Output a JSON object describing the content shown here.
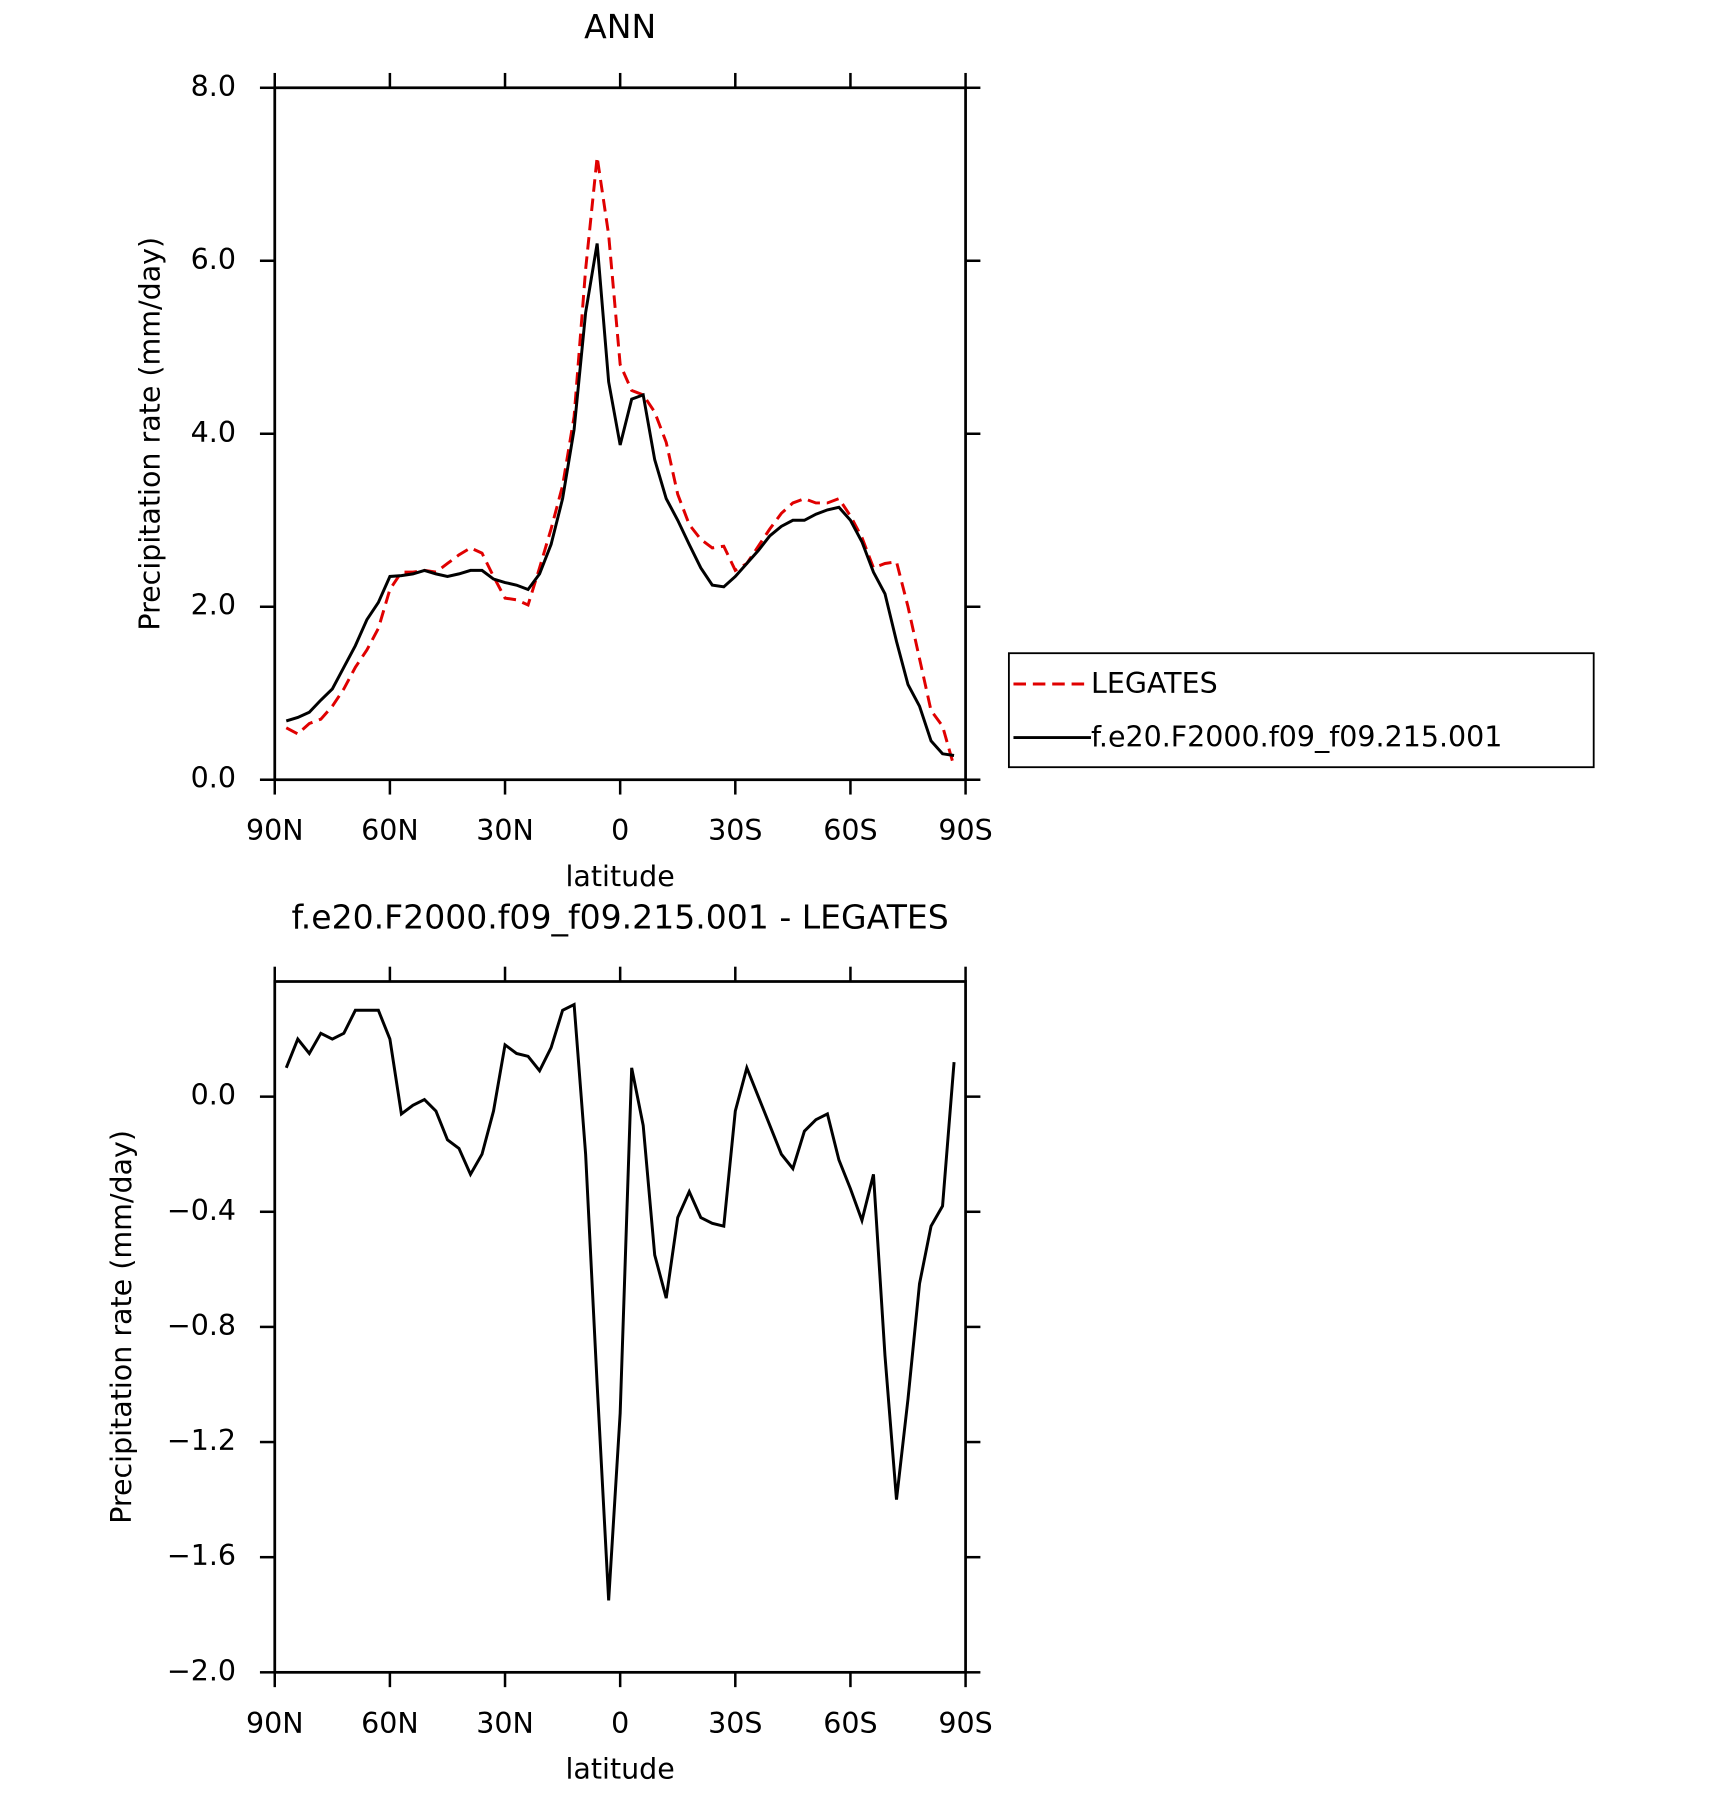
{
  "chart_data": [
    {
      "type": "line",
      "title": "ANN",
      "x_label": "latitude",
      "y_label": "Precipitation rate (mm/day)",
      "x": [
        87,
        84,
        81,
        78,
        75,
        72,
        69,
        66,
        63,
        60,
        57,
        54,
        51,
        48,
        45,
        42,
        39,
        36,
        33,
        30,
        27,
        24,
        21,
        18,
        15,
        12,
        9,
        6,
        3,
        0,
        -3,
        -6,
        -9,
        -12,
        -15,
        -18,
        -21,
        -24,
        -27,
        -30,
        -33,
        -36,
        -39,
        -42,
        -45,
        -48,
        -51,
        -54,
        -57,
        -60,
        -63,
        -66,
        -69,
        -72,
        -75,
        -78,
        -81,
        -84,
        -87
      ],
      "series": [
        {
          "name": "LEGATES",
          "color": "#e00000",
          "linestyle": "dashed",
          "values": [
            0.6,
            0.53,
            0.65,
            0.7,
            0.85,
            1.05,
            1.3,
            1.5,
            1.75,
            2.2,
            2.4,
            2.4,
            2.42,
            2.4,
            2.5,
            2.6,
            2.68,
            2.62,
            2.35,
            2.1,
            2.08,
            2.02,
            2.45,
            2.9,
            3.4,
            4.2,
            5.9,
            7.2,
            6.3,
            4.8,
            4.5,
            4.45,
            4.25,
            3.9,
            3.3,
            2.95,
            2.78,
            2.68,
            2.7,
            2.42,
            2.5,
            2.7,
            2.9,
            3.08,
            3.2,
            3.25,
            3.2,
            3.2,
            3.25,
            3.05,
            2.8,
            2.45,
            2.5,
            2.52,
            2.0,
            1.4,
            0.8,
            0.62,
            0.15
          ]
        },
        {
          "name": "f.e20.F2000.f09_f09.215.001",
          "color": "#000000",
          "linestyle": "solid",
          "values": [
            0.68,
            0.72,
            0.78,
            0.92,
            1.05,
            1.3,
            1.55,
            1.85,
            2.05,
            2.35,
            2.36,
            2.38,
            2.42,
            2.38,
            2.35,
            2.38,
            2.42,
            2.42,
            2.32,
            2.28,
            2.25,
            2.2,
            2.38,
            2.72,
            3.25,
            4.05,
            5.4,
            6.2,
            4.6,
            3.87,
            4.4,
            4.45,
            3.7,
            3.25,
            3.0,
            2.72,
            2.45,
            2.25,
            2.23,
            2.35,
            2.5,
            2.65,
            2.82,
            2.93,
            3.0,
            3.0,
            3.07,
            3.12,
            3.15,
            3.0,
            2.75,
            2.4,
            2.15,
            1.6,
            1.1,
            0.85,
            0.45,
            0.3,
            0.28
          ]
        }
      ],
      "xlim": [
        90,
        -90
      ],
      "xticks": [
        {
          "value": 90,
          "label": "90N"
        },
        {
          "value": 60,
          "label": "60N"
        },
        {
          "value": 30,
          "label": "30N"
        },
        0,
        {
          "value": -30,
          "label": "30S"
        },
        {
          "value": -60,
          "label": "60S"
        },
        {
          "value": -90,
          "label": "90S"
        }
      ],
      "ylim": [
        0,
        8
      ],
      "yticks": [
        {
          "value": 0,
          "label": "0.0"
        },
        {
          "value": 2,
          "label": "2.0"
        },
        {
          "value": 4,
          "label": "4.0"
        },
        {
          "value": 6,
          "label": "6.0"
        },
        {
          "value": 8,
          "label": "8.0"
        }
      ],
      "legend": "right"
    },
    {
      "type": "line",
      "title": "f.e20.F2000.f09_f09.215.001 - LEGATES",
      "x_label": "latitude",
      "y_label": "Precipitation rate (mm/day)",
      "x": [
        87,
        84,
        81,
        78,
        75,
        72,
        69,
        66,
        63,
        60,
        57,
        54,
        51,
        48,
        45,
        42,
        39,
        36,
        33,
        30,
        27,
        24,
        21,
        18,
        15,
        12,
        9,
        6,
        3,
        0,
        -3,
        -6,
        -9,
        -12,
        -15,
        -18,
        -21,
        -24,
        -27,
        -30,
        -33,
        -36,
        -39,
        -42,
        -45,
        -48,
        -51,
        -54,
        -57,
        -60,
        -63,
        -66,
        -69,
        -72,
        -75,
        -78,
        -81,
        -84,
        -87
      ],
      "series": [
        {
          "color": "#000000",
          "linestyle": "solid",
          "values": [
            0.1,
            0.2,
            0.15,
            0.22,
            0.2,
            0.22,
            0.3,
            0.3,
            0.3,
            0.2,
            -0.06,
            -0.03,
            -0.01,
            -0.05,
            -0.15,
            -0.18,
            -0.27,
            -0.2,
            -0.05,
            0.18,
            0.15,
            0.14,
            0.09,
            0.17,
            0.3,
            0.32,
            -0.2,
            -1.0,
            -1.75,
            -1.1,
            0.1,
            -0.1,
            -0.55,
            -0.7,
            -0.42,
            -0.33,
            -0.42,
            -0.44,
            -0.45,
            -0.05,
            0.1,
            0.0,
            -0.1,
            -0.2,
            -0.25,
            -0.12,
            -0.08,
            -0.06,
            -0.22,
            -0.32,
            -0.43,
            -0.27,
            -0.9,
            -1.4,
            -1.05,
            -0.65,
            -0.45,
            -0.38,
            0.12
          ]
        }
      ],
      "xlim": [
        90,
        -90
      ],
      "xticks": [
        {
          "value": 90,
          "label": "90N"
        },
        {
          "value": 60,
          "label": "60N"
        },
        {
          "value": 30,
          "label": "30N"
        },
        0,
        {
          "value": -30,
          "label": "30S"
        },
        {
          "value": -60,
          "label": "60S"
        },
        {
          "value": -90,
          "label": "90S"
        }
      ],
      "ylim": [
        -2.0,
        0.4
      ],
      "yticks": [
        {
          "value": -2.0,
          "label": "−2.0"
        },
        {
          "value": -1.6,
          "label": "−1.6"
        },
        {
          "value": -1.2,
          "label": "−1.2"
        },
        {
          "value": -0.8,
          "label": "−0.8"
        },
        {
          "value": -0.4,
          "label": "−0.4"
        },
        {
          "value": 0,
          "label": "0.0"
        }
      ]
    }
  ]
}
